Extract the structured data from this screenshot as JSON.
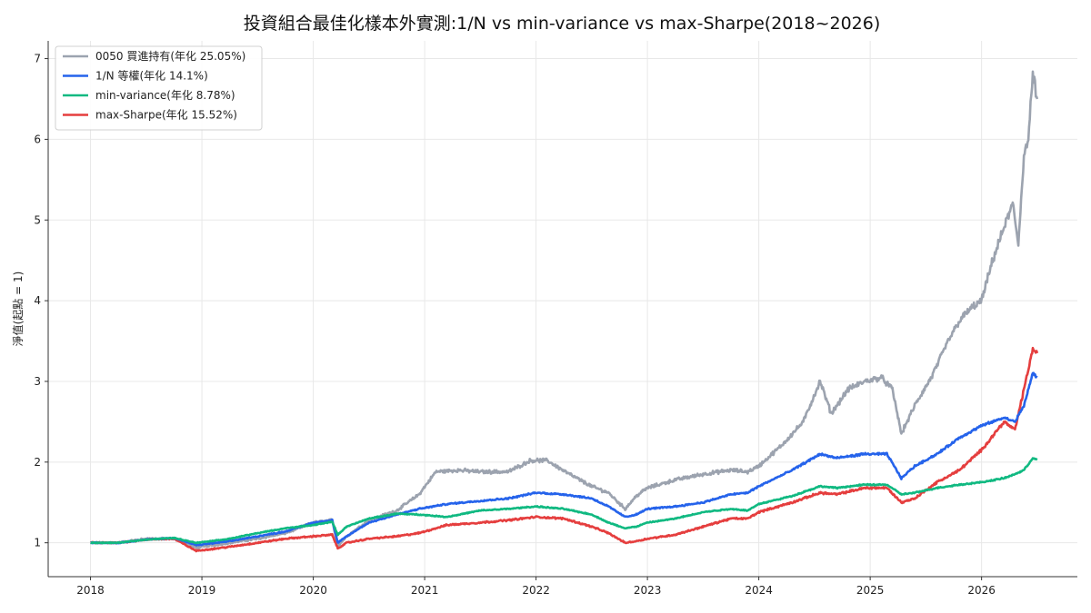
{
  "chart_data": {
    "type": "line",
    "title": "投資組合最佳化樣本外實測:1/N vs min-variance vs max-Sharpe(2018~2026)",
    "xlabel": "",
    "ylabel": "淨值(起點 = 1)",
    "xlim": [
      2017.62,
      2026.86
    ],
    "ylim": [
      0.58,
      7.22
    ],
    "x_ticks": [
      "2018",
      "2019",
      "2020",
      "2021",
      "2022",
      "2023",
      "2024",
      "2025",
      "2026"
    ],
    "y_ticks": [
      "1",
      "2",
      "3",
      "4",
      "5",
      "6",
      "7"
    ],
    "grid": true,
    "legend_position": "top-left",
    "series": [
      {
        "name": "0050 買進持有(年化 25.05%)",
        "color": "#9ca3af",
        "points": [
          [
            2018.0,
            1.0
          ],
          [
            2018.25,
            1.0
          ],
          [
            2018.5,
            1.05
          ],
          [
            2018.75,
            1.05
          ],
          [
            2018.95,
            0.94
          ],
          [
            2019.25,
            1.0
          ],
          [
            2019.5,
            1.05
          ],
          [
            2019.75,
            1.12
          ],
          [
            2020.0,
            1.25
          ],
          [
            2020.17,
            1.28
          ],
          [
            2020.22,
            0.96
          ],
          [
            2020.3,
            1.08
          ],
          [
            2020.5,
            1.28
          ],
          [
            2020.75,
            1.4
          ],
          [
            2020.95,
            1.6
          ],
          [
            2021.1,
            1.88
          ],
          [
            2021.3,
            1.9
          ],
          [
            2021.5,
            1.88
          ],
          [
            2021.75,
            1.88
          ],
          [
            2021.95,
            2.02
          ],
          [
            2022.1,
            2.02
          ],
          [
            2022.3,
            1.85
          ],
          [
            2022.5,
            1.7
          ],
          [
            2022.65,
            1.62
          ],
          [
            2022.8,
            1.42
          ],
          [
            2022.9,
            1.58
          ],
          [
            2023.0,
            1.68
          ],
          [
            2023.25,
            1.78
          ],
          [
            2023.5,
            1.85
          ],
          [
            2023.75,
            1.9
          ],
          [
            2023.9,
            1.88
          ],
          [
            2024.0,
            1.95
          ],
          [
            2024.2,
            2.2
          ],
          [
            2024.4,
            2.5
          ],
          [
            2024.55,
            3.0
          ],
          [
            2024.65,
            2.6
          ],
          [
            2024.8,
            2.9
          ],
          [
            2024.95,
            3.0
          ],
          [
            2025.1,
            3.05
          ],
          [
            2025.2,
            2.9
          ],
          [
            2025.28,
            2.35
          ],
          [
            2025.4,
            2.7
          ],
          [
            2025.55,
            3.05
          ],
          [
            2025.7,
            3.5
          ],
          [
            2025.8,
            3.75
          ],
          [
            2025.9,
            3.9
          ],
          [
            2026.0,
            4.0
          ],
          [
            2026.1,
            4.5
          ],
          [
            2026.2,
            4.9
          ],
          [
            2026.28,
            5.2
          ],
          [
            2026.33,
            4.7
          ],
          [
            2026.38,
            5.8
          ],
          [
            2026.42,
            6.0
          ],
          [
            2026.46,
            6.8
          ],
          [
            2026.5,
            6.5
          ]
        ]
      },
      {
        "name": "1/N 等權(年化 14.1%)",
        "color": "#2563eb",
        "points": [
          [
            2018.0,
            1.0
          ],
          [
            2018.25,
            1.0
          ],
          [
            2018.5,
            1.04
          ],
          [
            2018.75,
            1.06
          ],
          [
            2018.95,
            0.97
          ],
          [
            2019.25,
            1.02
          ],
          [
            2019.5,
            1.08
          ],
          [
            2019.75,
            1.14
          ],
          [
            2020.0,
            1.25
          ],
          [
            2020.17,
            1.28
          ],
          [
            2020.22,
            1.0
          ],
          [
            2020.3,
            1.08
          ],
          [
            2020.5,
            1.25
          ],
          [
            2020.75,
            1.35
          ],
          [
            2020.95,
            1.42
          ],
          [
            2021.2,
            1.48
          ],
          [
            2021.5,
            1.52
          ],
          [
            2021.75,
            1.55
          ],
          [
            2022.0,
            1.62
          ],
          [
            2022.25,
            1.6
          ],
          [
            2022.5,
            1.55
          ],
          [
            2022.65,
            1.45
          ],
          [
            2022.8,
            1.32
          ],
          [
            2022.9,
            1.35
          ],
          [
            2023.0,
            1.42
          ],
          [
            2023.25,
            1.45
          ],
          [
            2023.5,
            1.5
          ],
          [
            2023.75,
            1.6
          ],
          [
            2023.9,
            1.62
          ],
          [
            2024.0,
            1.7
          ],
          [
            2024.3,
            1.9
          ],
          [
            2024.55,
            2.1
          ],
          [
            2024.7,
            2.05
          ],
          [
            2024.95,
            2.1
          ],
          [
            2025.15,
            2.1
          ],
          [
            2025.28,
            1.8
          ],
          [
            2025.4,
            1.95
          ],
          [
            2025.6,
            2.1
          ],
          [
            2025.8,
            2.3
          ],
          [
            2026.0,
            2.45
          ],
          [
            2026.2,
            2.55
          ],
          [
            2026.3,
            2.5
          ],
          [
            2026.38,
            2.7
          ],
          [
            2026.46,
            3.1
          ],
          [
            2026.5,
            3.05
          ]
        ]
      },
      {
        "name": "min-variance(年化 8.78%)",
        "color": "#10b981",
        "points": [
          [
            2018.0,
            1.0
          ],
          [
            2018.25,
            1.0
          ],
          [
            2018.5,
            1.04
          ],
          [
            2018.75,
            1.06
          ],
          [
            2018.95,
            1.0
          ],
          [
            2019.25,
            1.05
          ],
          [
            2019.5,
            1.12
          ],
          [
            2019.75,
            1.18
          ],
          [
            2020.0,
            1.22
          ],
          [
            2020.17,
            1.26
          ],
          [
            2020.22,
            1.1
          ],
          [
            2020.3,
            1.2
          ],
          [
            2020.5,
            1.3
          ],
          [
            2020.75,
            1.36
          ],
          [
            2020.95,
            1.35
          ],
          [
            2021.2,
            1.32
          ],
          [
            2021.5,
            1.4
          ],
          [
            2021.75,
            1.42
          ],
          [
            2022.0,
            1.45
          ],
          [
            2022.25,
            1.42
          ],
          [
            2022.5,
            1.35
          ],
          [
            2022.65,
            1.25
          ],
          [
            2022.8,
            1.18
          ],
          [
            2022.9,
            1.2
          ],
          [
            2023.0,
            1.25
          ],
          [
            2023.25,
            1.3
          ],
          [
            2023.5,
            1.38
          ],
          [
            2023.75,
            1.42
          ],
          [
            2023.9,
            1.4
          ],
          [
            2024.0,
            1.48
          ],
          [
            2024.3,
            1.58
          ],
          [
            2024.55,
            1.7
          ],
          [
            2024.7,
            1.68
          ],
          [
            2024.95,
            1.72
          ],
          [
            2025.15,
            1.72
          ],
          [
            2025.28,
            1.6
          ],
          [
            2025.4,
            1.62
          ],
          [
            2025.6,
            1.68
          ],
          [
            2025.8,
            1.72
          ],
          [
            2026.0,
            1.75
          ],
          [
            2026.2,
            1.8
          ],
          [
            2026.3,
            1.85
          ],
          [
            2026.38,
            1.9
          ],
          [
            2026.46,
            2.05
          ],
          [
            2026.5,
            2.03
          ]
        ]
      },
      {
        "name": "max-Sharpe(年化 15.52%)",
        "color": "#e53e3e",
        "points": [
          [
            2018.0,
            1.0
          ],
          [
            2018.25,
            1.0
          ],
          [
            2018.5,
            1.04
          ],
          [
            2018.75,
            1.05
          ],
          [
            2018.95,
            0.9
          ],
          [
            2019.25,
            0.95
          ],
          [
            2019.5,
            1.0
          ],
          [
            2019.75,
            1.05
          ],
          [
            2020.0,
            1.08
          ],
          [
            2020.17,
            1.1
          ],
          [
            2020.22,
            0.93
          ],
          [
            2020.3,
            1.0
          ],
          [
            2020.5,
            1.05
          ],
          [
            2020.75,
            1.08
          ],
          [
            2020.95,
            1.12
          ],
          [
            2021.2,
            1.22
          ],
          [
            2021.5,
            1.25
          ],
          [
            2021.75,
            1.28
          ],
          [
            2022.0,
            1.32
          ],
          [
            2022.25,
            1.3
          ],
          [
            2022.5,
            1.2
          ],
          [
            2022.65,
            1.12
          ],
          [
            2022.8,
            1.0
          ],
          [
            2022.9,
            1.02
          ],
          [
            2023.0,
            1.05
          ],
          [
            2023.25,
            1.1
          ],
          [
            2023.5,
            1.2
          ],
          [
            2023.75,
            1.3
          ],
          [
            2023.9,
            1.3
          ],
          [
            2024.0,
            1.38
          ],
          [
            2024.3,
            1.5
          ],
          [
            2024.55,
            1.62
          ],
          [
            2024.7,
            1.6
          ],
          [
            2024.95,
            1.68
          ],
          [
            2025.15,
            1.68
          ],
          [
            2025.28,
            1.5
          ],
          [
            2025.4,
            1.55
          ],
          [
            2025.6,
            1.75
          ],
          [
            2025.8,
            1.9
          ],
          [
            2026.0,
            2.15
          ],
          [
            2026.2,
            2.5
          ],
          [
            2026.3,
            2.4
          ],
          [
            2026.38,
            2.9
          ],
          [
            2026.46,
            3.4
          ],
          [
            2026.5,
            3.35
          ]
        ]
      }
    ]
  }
}
